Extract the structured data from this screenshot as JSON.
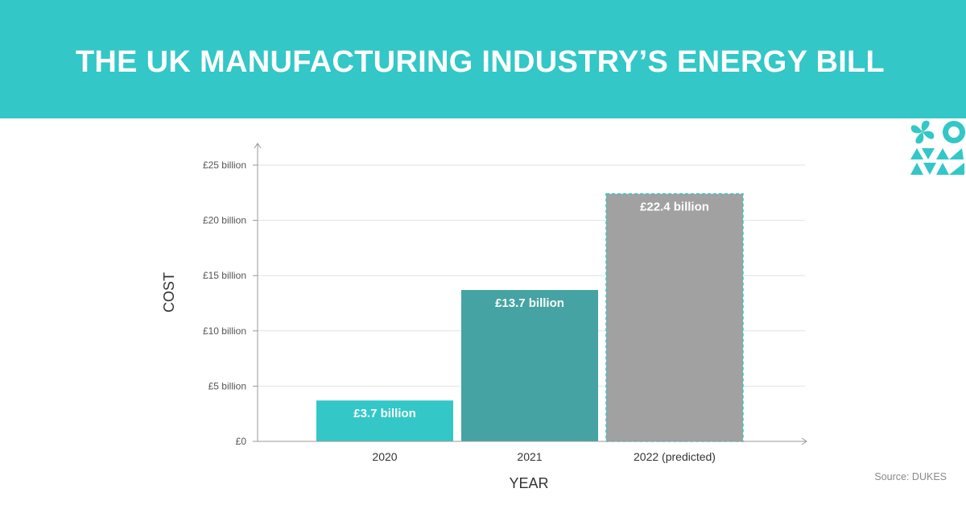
{
  "header": {
    "title": "THE UK MANUFACTURING INDUSTRY’S ENERGY BILL"
  },
  "chart_data": {
    "type": "bar",
    "title": "THE UK MANUFACTURING INDUSTRY’S ENERGY BILL",
    "xlabel": "YEAR",
    "ylabel": "COST",
    "categories": [
      "2020",
      "2021",
      "2022 (predicted)"
    ],
    "values": [
      3.7,
      13.7,
      22.4
    ],
    "value_labels": [
      "£3.7 billion",
      "£13.7 billion",
      "£22.4 billion"
    ],
    "bar_colors": [
      "#33c7c7",
      "#45a3a3",
      "#a1a1a1"
    ],
    "bar_outline_dashed": [
      false,
      false,
      true
    ],
    "dash_color": "#33c7c7",
    "ylim": [
      0,
      25
    ],
    "yticks": [
      0,
      5,
      10,
      15,
      20,
      25
    ],
    "ytick_labels": [
      "£0",
      "£5 billion",
      "£10 billion",
      "£15 billion",
      "£20 billion",
      "£25 billion"
    ],
    "grid": true
  },
  "footer": {
    "source": "Source: DUKES"
  },
  "colors": {
    "accent": "#33c7c7",
    "axis": "#999999",
    "grid": "#e2e2e2"
  }
}
